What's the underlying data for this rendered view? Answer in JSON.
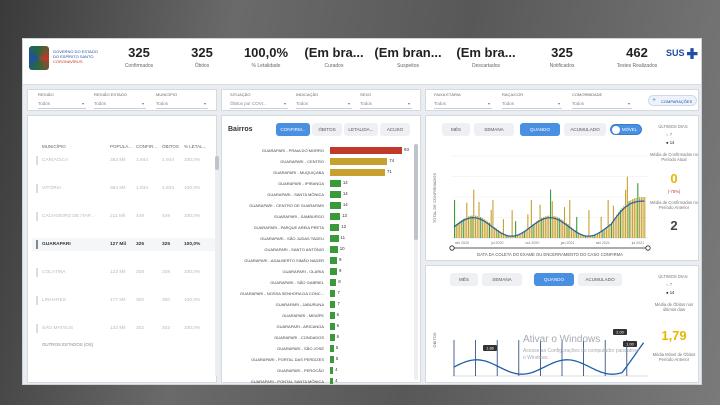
{
  "header": {
    "org_line1": "GOVERNO DO ESTADO",
    "org_line2": "DO ESPÍRITO SANTO",
    "org_line3": "CORONAVÍRUS",
    "kpis": [
      {
        "value": "325",
        "label": "Confirmados"
      },
      {
        "value": "325",
        "label": "Óbitos"
      },
      {
        "value": "100,0%",
        "label": "% Letalidade"
      },
      {
        "value": "(Em bra...",
        "label": "Curados"
      },
      {
        "value": "(Em bran...",
        "label": "Suspeitos"
      },
      {
        "value": "(Em bra...",
        "label": "Descartados"
      },
      {
        "value": "325",
        "label": "Notificados"
      },
      {
        "value": "462",
        "label": "Testes Realizados"
      }
    ],
    "sus": "SUS"
  },
  "left_panel": {
    "filters": [
      {
        "label": "REGIÃO",
        "value": "Todos"
      },
      {
        "label": "REGIÃO ESTADO",
        "value": "Todos"
      },
      {
        "label": "MUNICÍPIO",
        "value": "Todos"
      }
    ],
    "columns": [
      "MUNICÍPIO",
      "POPULA...",
      "CONFIR...",
      "ÓBITOS",
      "% LETAL..."
    ],
    "rows": [
      {
        "municipio": "CARIACICA",
        "pop": "383 Mil",
        "conf": "1.944",
        "obitos": "1.944",
        "let": "100,0%"
      },
      {
        "municipio": "VITÓRIA",
        "pop": "364 Mil",
        "conf": "1.834",
        "obitos": "1.834",
        "let": "100,0%"
      },
      {
        "municipio": "CACHOEIRO DE ITAP...",
        "pop": "211 Mil",
        "conf": "449",
        "obitos": "449",
        "let": "100,0%"
      },
      {
        "municipio": "GUARAPARI",
        "pop": "127 Mil",
        "conf": "325",
        "obitos": "325",
        "let": "100,0%"
      },
      {
        "municipio": "COLATINA",
        "pop": "123 Mil",
        "conf": "208",
        "obitos": "208",
        "let": "100,0%"
      },
      {
        "municipio": "LINHARES",
        "pop": "177 Mil",
        "conf": "300",
        "obitos": "300",
        "let": "100,0%"
      },
      {
        "municipio": "SÃO MATEUS",
        "pop": "132 Mil",
        "conf": "202",
        "obitos": "202",
        "let": "100,0%"
      }
    ],
    "footer": "OUTROS ESTADOS (OS)"
  },
  "middle_panel": {
    "filters": [
      {
        "label": "SITUAÇÃO",
        "value": "Óbitos por COVI..."
      },
      {
        "label": "INDICAÇÃO",
        "value": "Todos"
      },
      {
        "label": "SEXO",
        "value": "Todos"
      }
    ],
    "title": "Bairros",
    "tabs": [
      "CONFIRM...",
      "ÓBITOS",
      "LETALIDA...",
      "ACUSO"
    ],
    "active_tab": 0,
    "bars": [
      {
        "name": "GUARAPARI - PRAIA DO MORRO",
        "value": 93,
        "color": "#c0392b"
      },
      {
        "name": "GUARAPARI - CENTRO",
        "value": 74,
        "color": "#c8a030"
      },
      {
        "name": "GUARAPARI - MUQUIÇABA",
        "value": 71,
        "color": "#c8a030"
      },
      {
        "name": "GUARAPARI - IPIRANGA",
        "value": 14,
        "color": "#3a9a3a"
      },
      {
        "name": "GUARAPARI - SANTA MÔNICA",
        "value": 14,
        "color": "#3a9a3a"
      },
      {
        "name": "GUARAPARI - CENTRO DE GUARAPARI",
        "value": 14,
        "color": "#3a9a3a"
      },
      {
        "name": "GUARAPARI - SAMBURGO",
        "value": 13,
        "color": "#3a9a3a"
      },
      {
        "name": "GUARAPARI - PARQUE AREIA PRETA",
        "value": 12,
        "color": "#3a9a3a"
      },
      {
        "name": "GUARAPARI - SÃO JUDAS TADEU",
        "value": 11,
        "color": "#3a9a3a"
      },
      {
        "name": "GUARAPARI - SANTO ANTÔNIO",
        "value": 10,
        "color": "#3a9a3a"
      },
      {
        "name": "GUARAPARI - ADALBERTO SIMÃO NADER",
        "value": 9,
        "color": "#3a9a3a"
      },
      {
        "name": "GUARAPARI - OLARIA",
        "value": 9,
        "color": "#3a9a3a"
      },
      {
        "name": "GUARAPARI - SÃO GABRIEL",
        "value": 8,
        "color": "#3a9a3a"
      },
      {
        "name": "GUARAPARI - NOSSA SENHORA DA CONC...",
        "value": 7,
        "color": "#3a9a3a"
      },
      {
        "name": "GUARAPARI - JABURUNA",
        "value": 7,
        "color": "#3a9a3a"
      },
      {
        "name": "GUARAPARI - MEAÍPE",
        "value": 6,
        "color": "#3a9a3a"
      },
      {
        "name": "GUARAPARI - ARICANGA",
        "value": 6,
        "color": "#3a9a3a"
      },
      {
        "name": "GUARAPARI - CONDADOS",
        "value": 6,
        "color": "#3a9a3a"
      },
      {
        "name": "GUARAPARI - SÃO JOSÉ",
        "value": 5,
        "color": "#3a9a3a"
      },
      {
        "name": "GUARAPARI - PORTAL DAS PERDIZES",
        "value": 5,
        "color": "#3a9a3a"
      },
      {
        "name": "GUARAPARI - PEROCÃO",
        "value": 4,
        "color": "#3a9a3a"
      },
      {
        "name": "GUARAPARI - PONTAL SANTA MÔNICA",
        "value": 4,
        "color": "#3a9a3a"
      }
    ]
  },
  "right_panel": {
    "filters": [
      {
        "label": "FAIXA ETÁRIA",
        "value": "Todos"
      },
      {
        "label": "RAÇA/COR",
        "value": "Todos"
      },
      {
        "label": "COMORBIDADE",
        "value": "Todos"
      }
    ],
    "compare_button": "COMPARAÇÕES",
    "top_chart": {
      "tabs": [
        "MÊS",
        "SEMANA",
        "QUANDO",
        "ACUMULADO"
      ],
      "active_tab": 2,
      "toggle_label": "MÓVEL",
      "y_label": "TOTAL DE CONFIRMADOS",
      "x_title": "DATA DA COLETA DO EXAME OU ENCERRAMENTO DO CASO CONFIRMA",
      "side": {
        "header": "ÚLTIMOS DIAS",
        "opt1": "7",
        "opt2": "14",
        "media_label": "Média de Confirmados no Período Atual",
        "media_value": "0",
        "pct": "(-75%)",
        "prev_label": "Média de Confirmados no Período Anterior",
        "prev_value": "2"
      }
    },
    "bottom_chart": {
      "tabs": [
        "MÊS",
        "SEMANA",
        "QUANDO",
        "ACUMULADO"
      ],
      "active_tab": 2,
      "y_label": "ÓBITOS",
      "labels": [
        "1.86",
        "2.00",
        "1.00"
      ],
      "side": {
        "header": "ÚLTIMOS DIAS",
        "opt1": "7",
        "opt2": "14",
        "media_label": "Média de Óbitos nos últimos dias",
        "media_value": "1,79",
        "prev_label": "Média Móvel de Óbitos Período Anterior"
      }
    },
    "watermark_title": "Ativar o Windows",
    "watermark_sub": "Acesse as Configurações do computador para ativar o Windows."
  },
  "chart_data": [
    {
      "type": "bar",
      "title": "Bairros",
      "categories": [
        "GUARAPARI - PRAIA DO MORRO",
        "GUARAPARI - CENTRO",
        "GUARAPARI - MUQUIÇABA",
        "GUARAPARI - IPIRANGA",
        "GUARAPARI - SANTA MÔNICA",
        "GUARAPARI - CENTRO DE GUARAPARI",
        "GUARAPARI - SAMBURGO",
        "GUARAPARI - PARQUE AREIA PRETA",
        "GUARAPARI - SÃO JUDAS TADEU",
        "GUARAPARI - SANTO ANTÔNIO",
        "GUARAPARI - ADALBERTO SIMÃO NADER",
        "GUARAPARI - OLARIA",
        "GUARAPARI - SÃO GABRIEL",
        "GUARAPARI - NOSSA SENHORA DA CONC...",
        "GUARAPARI - JABURUNA",
        "GUARAPARI - MEAÍPE",
        "GUARAPARI - ARICANGA",
        "GUARAPARI - CONDADOS",
        "GUARAPARI - SÃO JOSÉ",
        "GUARAPARI - PORTAL DAS PERDIZES",
        "GUARAPARI - PEROCÃO",
        "GUARAPARI - PONTAL SANTA MÔNICA"
      ],
      "values": [
        93,
        74,
        71,
        14,
        14,
        14,
        13,
        12,
        11,
        10,
        9,
        9,
        8,
        7,
        7,
        6,
        6,
        6,
        5,
        5,
        4,
        4
      ]
    },
    {
      "type": "bar",
      "ylabel": "TOTAL DE CONFIRMADOS",
      "xlabel": "DATA DA COLETA DO EXAME OU ENCERRAMENTO DO CASO CONFIRMA",
      "x_ticks": [
        "abr 2020",
        "jul 2020",
        "out 2020",
        "jan 2021",
        "abr 2021",
        "jul 2021"
      ],
      "ylim": [
        0,
        20
      ]
    },
    {
      "type": "line",
      "ylabel": "ÓBITOS",
      "ylim": [
        0,
        8
      ]
    }
  ]
}
